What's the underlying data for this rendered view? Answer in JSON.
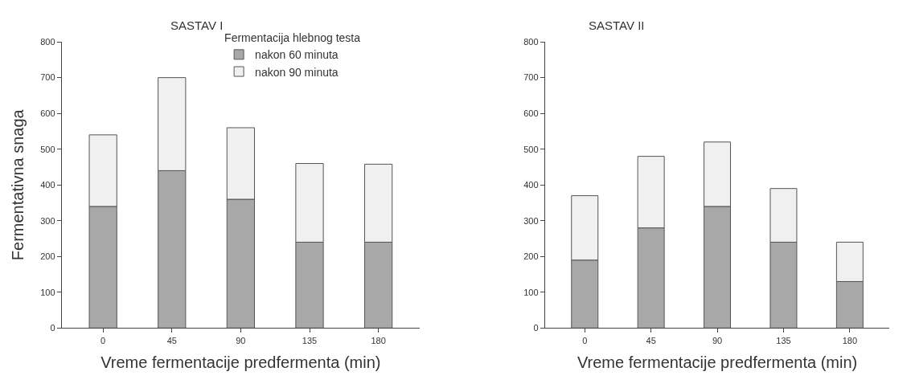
{
  "chart_data": [
    {
      "type": "bar",
      "title": "SASTAV I",
      "xlabel": "Vreme fermentacije predfermenta (min)",
      "ylabel": "Fermentativna snaga",
      "legend_title": "Fermentacija hlebnog testa",
      "categories": [
        "0",
        "45",
        "90",
        "135",
        "180"
      ],
      "stacked": true,
      "ylim": [
        0,
        800
      ],
      "yticks": [
        0,
        100,
        200,
        300,
        400,
        500,
        600,
        700,
        800
      ],
      "legend": "top right",
      "series": [
        {
          "name": "nakon 60 minuta",
          "color": "#a8a8a8",
          "values": [
            340,
            440,
            360,
            240,
            240
          ]
        },
        {
          "name": "nakon 90 minuta",
          "color": "#f0f0f0",
          "values": [
            200,
            260,
            200,
            220,
            218
          ]
        }
      ]
    },
    {
      "type": "bar",
      "title": "SASTAV II",
      "xlabel": "Vreme fermentacije predfermenta (min)",
      "categories": [
        "0",
        "45",
        "90",
        "135",
        "180"
      ],
      "stacked": true,
      "ylim": [
        0,
        800
      ],
      "yticks": [
        0,
        100,
        200,
        300,
        400,
        500,
        600,
        700,
        800
      ],
      "legend": false,
      "series": [
        {
          "color": "#a8a8a8",
          "values": [
            190,
            280,
            340,
            240,
            130
          ]
        },
        {
          "color": "#f0f0f0",
          "values": [
            180,
            200,
            180,
            150,
            110
          ]
        }
      ]
    }
  ]
}
